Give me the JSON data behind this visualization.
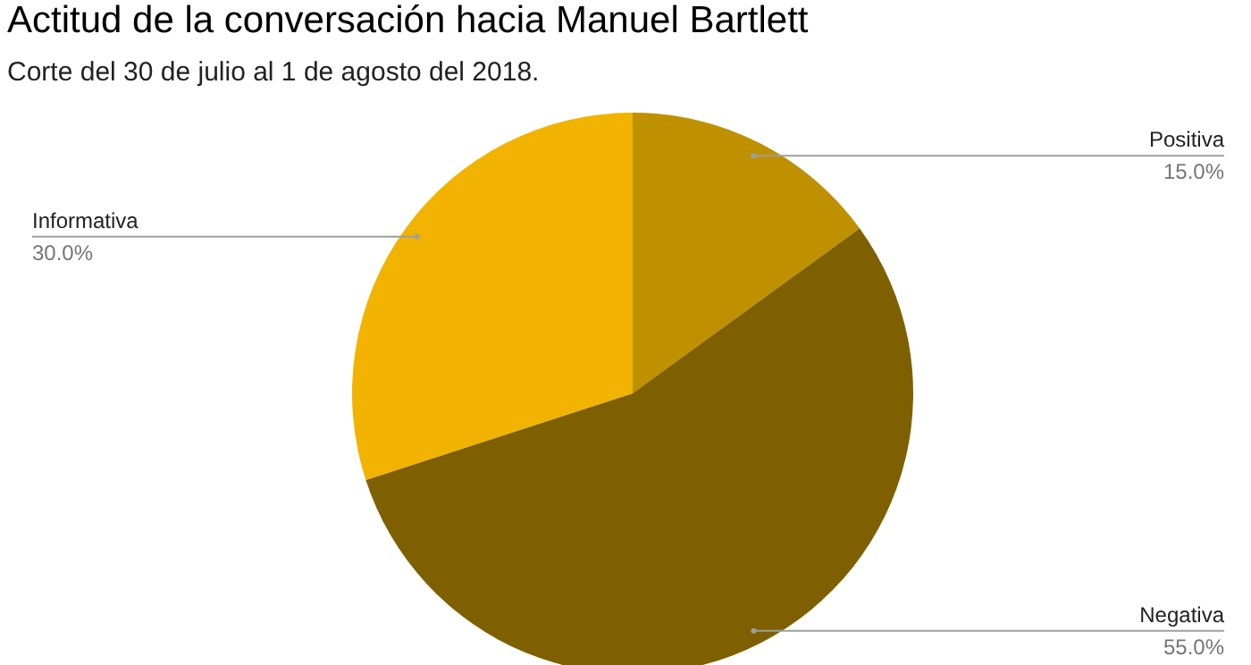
{
  "chart_data": {
    "type": "pie",
    "title": "Actitud de la conversación hacia Manuel Bartlett",
    "subtitle": "Corte del 30 de julio al 1 de agosto del 2018.",
    "categories": [
      "Positiva",
      "Negativa",
      "Informativa"
    ],
    "values": [
      15,
      55,
      30
    ],
    "value_labels": [
      "15.0%",
      "55.0%",
      "30.0%"
    ],
    "colors": [
      "#bf9000",
      "#7f6000",
      "#f1b300"
    ],
    "legend": false
  }
}
